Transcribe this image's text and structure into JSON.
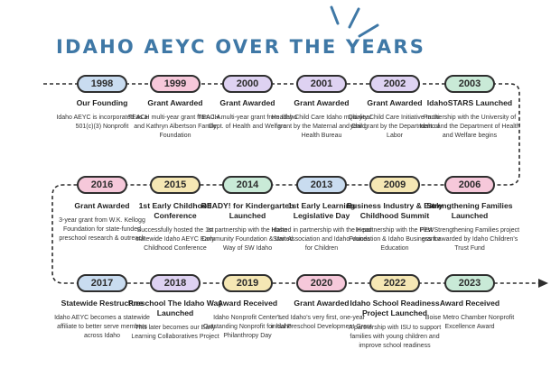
{
  "title": "IDAHO AEYC OVER THE YEARS",
  "colors": {
    "title": "#3f78a6",
    "blue": "#c9dcf0",
    "pink": "#f6c8da",
    "purple": "#ded2f2",
    "green": "#c9ead7",
    "yellow": "#f5e7b4",
    "line": "#2e2e2e"
  },
  "rows": [
    [
      {
        "year": "1998",
        "color": "blue",
        "title": "Our Founding",
        "desc": "Idaho AEYC is incorporated as a 501(c)(3) Nonprofit"
      },
      {
        "year": "1999",
        "color": "pink",
        "title": "Grant Awarded",
        "desc": "TEACH multi-year grant from J.A. and Kathryn Albertson Family Foundation"
      },
      {
        "year": "2000",
        "color": "purple",
        "title": "Grant Awarded",
        "desc": "TEACH multi-year grant from Idaho Dept. of Health and Welfare"
      },
      {
        "year": "2001",
        "color": "purple",
        "title": "Grant Awarded",
        "desc": "Healthy Child Care Idaho multi-year grant by the Maternal and Child Health Bureau"
      },
      {
        "year": "2002",
        "color": "purple",
        "title": "Grant Awarded",
        "desc": "Quality Child Care Initiative multi-year grant by the Department of Labor"
      },
      {
        "year": "2003",
        "color": "green",
        "title": "IdahoSTARS Launched",
        "desc": "Partnership with the University of Idaho and the Department of Health and Welfare begins"
      }
    ],
    [
      {
        "year": "2016",
        "color": "pink",
        "title": "Grant Awarded",
        "desc": "3-year grant from W.K. Kellogg Foundation for state-funded preschool research & outreach"
      },
      {
        "year": "2015",
        "color": "yellow",
        "title": "1st Early Childhood Conference",
        "desc": "Successfully hosted the 1st statewide Idaho AEYC Early Childhood Conference"
      },
      {
        "year": "2014",
        "color": "green",
        "title": "READY! for Kindergarten Launched",
        "desc": "In partnership with the Idaho Community Foundation & United Way of SW Idaho"
      },
      {
        "year": "2013",
        "color": "blue",
        "title": "1st Early Learning Legislative Day",
        "desc": "Hosted in partnership with the Head Start Association and Idaho Voices for Children"
      },
      {
        "year": "2009",
        "color": "yellow",
        "title": "Business Industry & Early Childhood Summit",
        "desc": "In partnership with the PEW Foundation & Idaho Business for Education"
      },
      {
        "year": "2006",
        "color": "pink",
        "title": "Strengthening Families Launched",
        "desc": "First Strengthening Families project grant awarded by Idaho Children's Trust Fund"
      }
    ],
    [
      {
        "year": "2017",
        "color": "blue",
        "title": "Statewide Restructure",
        "desc": "Idaho AEYC becomes a statewide affiliate to better serve members across Idaho"
      },
      {
        "year": "2018",
        "color": "purple",
        "title": "Preschool The Idaho Way Launched",
        "desc": "This later becomes our Early Learning Collaboratives Project"
      },
      {
        "year": "2019",
        "color": "yellow",
        "title": "Award Received",
        "desc": "Idaho Nonprofit Center's Outstanding Nonprofit for Idaho Philanthropy Day"
      },
      {
        "year": "2020",
        "color": "pink",
        "title": "Grant Awarded",
        "desc": "Led Idaho's very first, one-year initial Preschool Development Grant"
      },
      {
        "year": "2022",
        "color": "yellow",
        "title": "Idaho School Readiness Project Launched",
        "desc": "A partnership with ISU to support families with young children and improve school readiness"
      },
      {
        "year": "2023",
        "color": "green",
        "title": "Award Received",
        "desc": "Boise Metro Chamber Nonprofit Excellence Award"
      }
    ]
  ]
}
